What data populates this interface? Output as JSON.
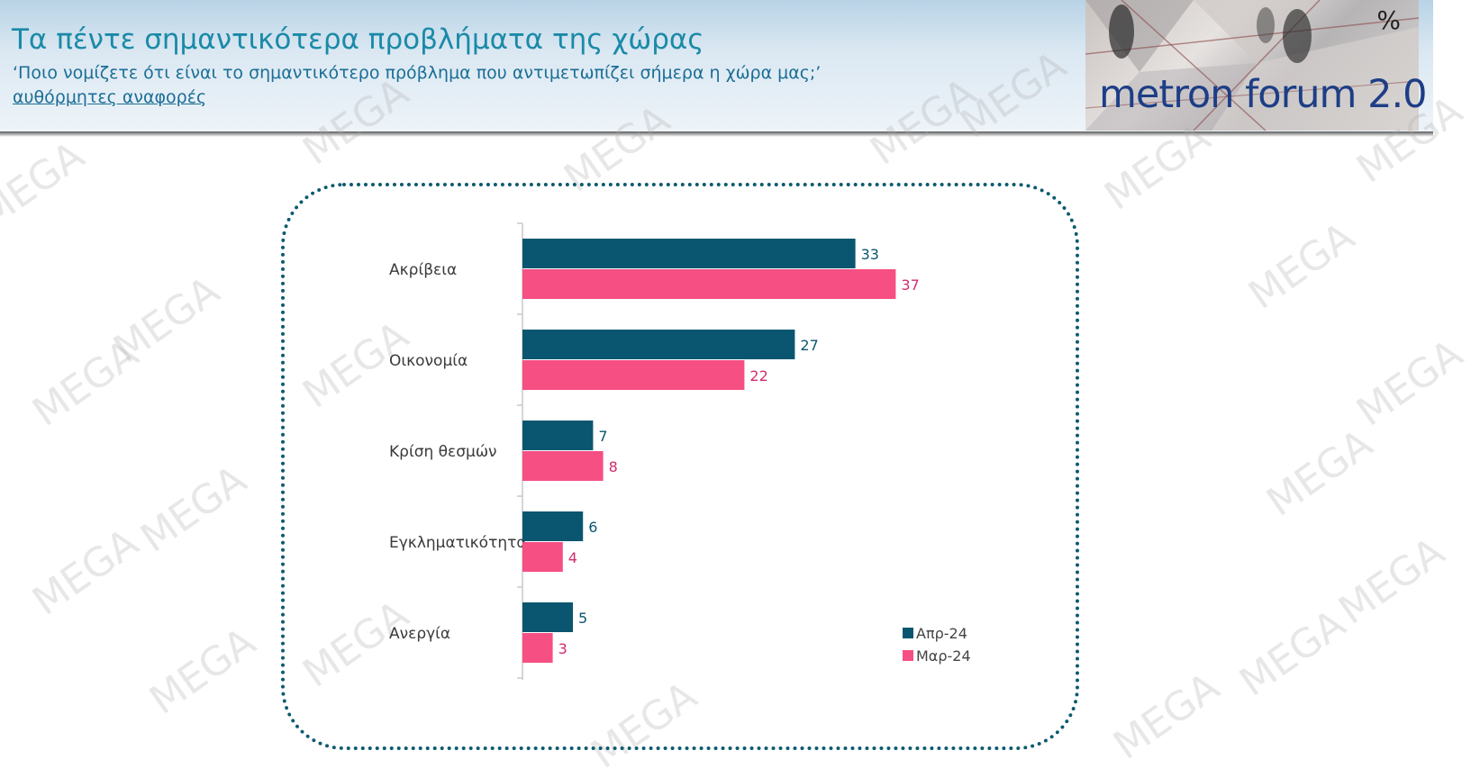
{
  "header": {
    "title": "Τα πέντε σημαντικότερα προβλήματα της χώρας",
    "subtitle": "‘Ποιο νομίζετε ότι είναι το σημαντικότερο πρόβλημα που αντιμετωπίζει σήμερα η χώρα μας;’",
    "note": "αυθόρμητες αναφορές",
    "logo_text": "metron forum 2.0",
    "unit": "%"
  },
  "watermark_text": "MEGA",
  "colors": {
    "series_apr": "#0a5670",
    "series_mar": "#f64f83",
    "label_apr": "#0a5670",
    "label_mar": "#d22c6f",
    "title": "#1a8aa8",
    "frame": "#0d5a70"
  },
  "chart_data": {
    "type": "bar",
    "orientation": "horizontal",
    "categories": [
      "Ακρίβεια",
      "Οικονομία",
      "Κρίση θεσμών",
      "Εγκληματικότητα",
      "Ανεργία"
    ],
    "series": [
      {
        "name": "Απρ-24",
        "values": [
          33,
          27,
          7,
          6,
          5
        ]
      },
      {
        "name": "Μαρ-24",
        "values": [
          37,
          22,
          8,
          4,
          3
        ]
      }
    ],
    "title": "",
    "xlabel": "",
    "ylabel": "",
    "xlim": [
      0,
      50
    ],
    "grid": false,
    "legend_position": "bottom-right"
  }
}
